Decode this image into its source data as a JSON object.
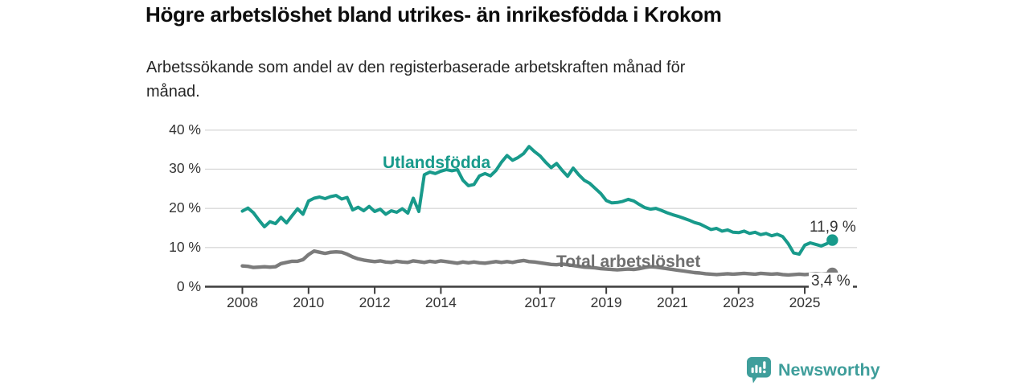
{
  "title": "Högre arbetslöshet bland utrikes- än inrikesfödda i Krokom",
  "subtitle_lines": [
    "Arbetssökande som andel av den registerbaserade arbetskraften månad för",
    "månad."
  ],
  "chart_data": {
    "type": "line",
    "title": "Högre arbetslöshet bland utrikes- än inrikesfödda i Krokom",
    "subtitle": "Arbetssökande som andel av den registerbaserade arbetskraften månad för månad.",
    "grid": "horizontal",
    "legend": "inline-labels",
    "ylim": [
      0,
      40
    ],
    "x_range": [
      2008.0,
      2025.83
    ],
    "x_step_years": 0.166667,
    "y_tick_values": [
      0,
      10,
      20,
      30,
      40
    ],
    "y_tick_labels": [
      "0 %",
      "10 %",
      "20 %",
      "30 %",
      "40 %"
    ],
    "x_tick_values": [
      2008,
      2010,
      2012,
      2014,
      2017,
      2019,
      2021,
      2023,
      2025
    ],
    "x_tick_labels": [
      "2008",
      "2010",
      "2012",
      "2014",
      "2017",
      "2019",
      "2021",
      "2023",
      "2025"
    ],
    "series": [
      {
        "name": "Utlandsfödda",
        "color": "#189a8b",
        "end_label": "11,9 %",
        "end_value": 11.9,
        "values": [
          19.3,
          20.1,
          18.9,
          17.0,
          15.3,
          16.6,
          16.1,
          17.7,
          16.3,
          18.1,
          19.9,
          18.5,
          21.9,
          22.6,
          22.9,
          22.5,
          23.0,
          23.3,
          22.4,
          22.8,
          19.6,
          20.3,
          19.4,
          20.5,
          19.2,
          19.8,
          18.5,
          19.4,
          19.0,
          19.9,
          18.8,
          22.6,
          19.2,
          28.6,
          29.3,
          28.9,
          29.5,
          29.9,
          29.6,
          29.9,
          27.2,
          25.8,
          26.1,
          28.3,
          28.9,
          28.3,
          29.7,
          31.8,
          33.5,
          32.3,
          33.0,
          34.0,
          35.8,
          34.5,
          33.4,
          31.8,
          30.4,
          31.5,
          29.7,
          28.2,
          30.3,
          28.6,
          27.2,
          26.4,
          25.1,
          23.8,
          22.0,
          21.4,
          21.5,
          21.8,
          22.3,
          21.9,
          21.0,
          20.2,
          19.8,
          20.0,
          19.5,
          18.9,
          18.4,
          18.0,
          17.5,
          17.0,
          16.4,
          16.0,
          15.3,
          14.6,
          14.9,
          14.2,
          14.5,
          13.9,
          13.8,
          14.2,
          13.6,
          13.9,
          13.3,
          13.6,
          13.0,
          13.4,
          12.8,
          11.0,
          8.6,
          8.3,
          10.6,
          11.2,
          10.8,
          10.4,
          11.0,
          11.9
        ]
      },
      {
        "name": "Total arbetslöshet",
        "color": "#7b7b7b",
        "end_label": "3,4 %",
        "end_value": 3.4,
        "values": [
          5.3,
          5.2,
          4.9,
          5.0,
          5.1,
          5.0,
          5.1,
          5.9,
          6.2,
          6.5,
          6.5,
          6.9,
          8.2,
          9.1,
          8.8,
          8.5,
          8.8,
          8.9,
          8.8,
          8.3,
          7.6,
          7.1,
          6.8,
          6.6,
          6.4,
          6.6,
          6.3,
          6.2,
          6.5,
          6.3,
          6.2,
          6.6,
          6.4,
          6.2,
          6.5,
          6.3,
          6.6,
          6.4,
          6.2,
          6.0,
          6.3,
          6.1,
          6.3,
          6.1,
          6.0,
          6.2,
          6.4,
          6.2,
          6.4,
          6.2,
          6.5,
          6.7,
          6.4,
          6.3,
          6.1,
          5.9,
          5.7,
          5.6,
          5.8,
          5.6,
          5.4,
          5.2,
          5.0,
          4.9,
          4.8,
          4.6,
          4.5,
          4.4,
          4.3,
          4.4,
          4.5,
          4.4,
          4.6,
          4.9,
          5.1,
          5.0,
          4.8,
          4.6,
          4.4,
          4.2,
          4.0,
          3.8,
          3.6,
          3.5,
          3.3,
          3.2,
          3.1,
          3.2,
          3.3,
          3.2,
          3.3,
          3.4,
          3.3,
          3.2,
          3.4,
          3.3,
          3.2,
          3.3,
          3.1,
          3.0,
          3.1,
          3.2,
          3.1,
          3.2,
          3.3,
          3.2,
          3.3,
          3.4
        ]
      }
    ]
  },
  "branding": {
    "logo_text": "Newsworthy",
    "logo_icon": "bar-chart-speech-bubble-icon",
    "logo_color": "#3f9e9b"
  },
  "colors": {
    "utlandsfodda_line": "#189a8b",
    "total_line": "#7b7b7b",
    "axis": "#3d3d3d",
    "gridline": "#dadada",
    "value_label": "#333333"
  }
}
